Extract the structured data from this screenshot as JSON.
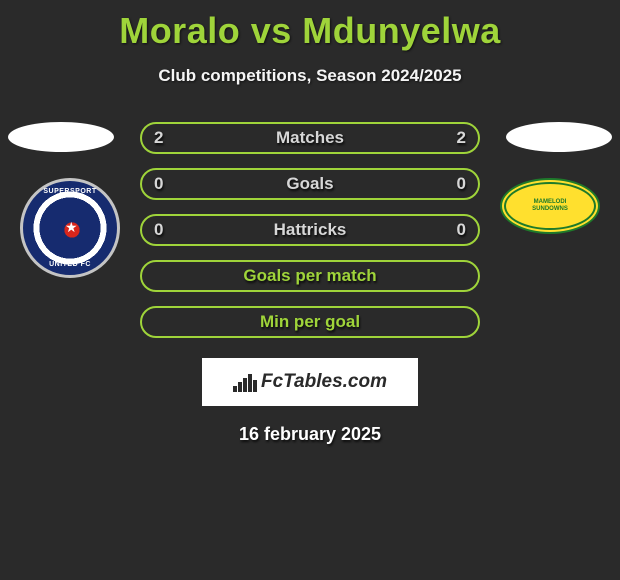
{
  "title": "Moralo vs Mdunyelwa",
  "subtitle": "Club competitions, Season 2024/2025",
  "date": "16 february 2025",
  "logo_text": "FcTables.com",
  "colors": {
    "accent": "#9fd43a",
    "bar_text": "#d7d7d7",
    "bg": "#2a2a2a"
  },
  "clubs": {
    "left": {
      "name": "SuperSport United FC"
    },
    "right": {
      "name": "Mamelodi Sundowns"
    }
  },
  "bars": [
    {
      "label": "Matches",
      "left": "2",
      "right": "2",
      "border": "#9fd43a",
      "text": "#d7d7d7"
    },
    {
      "label": "Goals",
      "left": "0",
      "right": "0",
      "border": "#9fd43a",
      "text": "#d7d7d7"
    },
    {
      "label": "Hattricks",
      "left": "0",
      "right": "0",
      "border": "#9fd43a",
      "text": "#d7d7d7"
    },
    {
      "label": "Goals per match",
      "left": "",
      "right": "",
      "border": "#9fd43a",
      "text": "#9fd43a"
    },
    {
      "label": "Min per goal",
      "left": "",
      "right": "",
      "border": "#9fd43a",
      "text": "#9fd43a"
    }
  ]
}
